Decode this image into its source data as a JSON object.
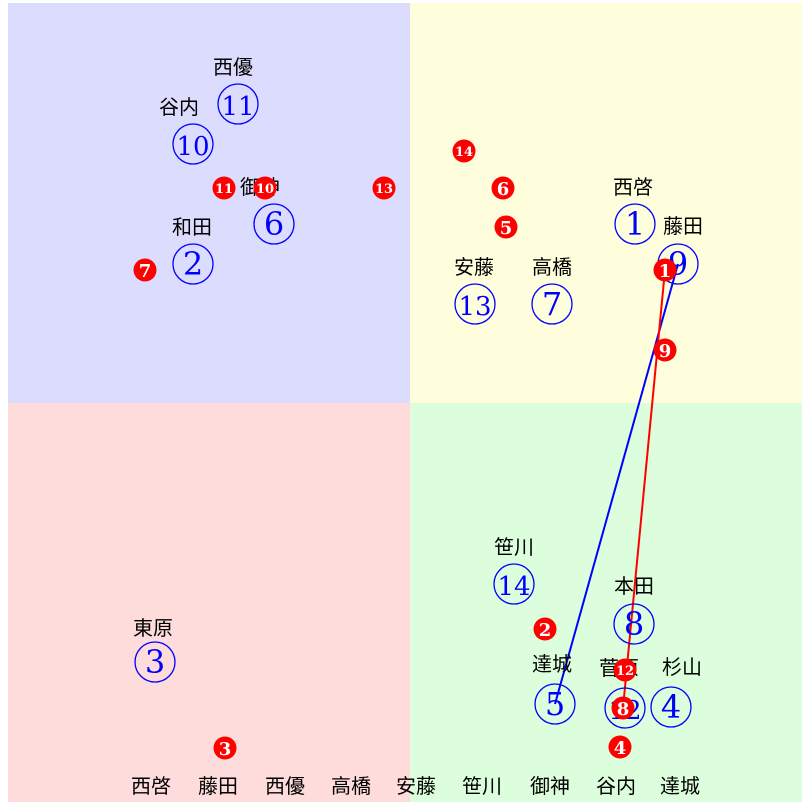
{
  "quadrant_colors": {
    "top_left": "#dcdcfe",
    "top_right": "#fefedc",
    "bottom_left": "#fedcdc",
    "bottom_right": "#dcfedc"
  },
  "colors": {
    "blue": "#0000ff",
    "red": "#ff0000",
    "label": "#000000"
  },
  "blue_markers": [
    {
      "number": "1",
      "name": "西啓"
    },
    {
      "number": "2",
      "name": "和田"
    },
    {
      "number": "3",
      "name": "東原"
    },
    {
      "number": "4",
      "name": "杉山"
    },
    {
      "number": "5",
      "name": "達城"
    },
    {
      "number": "6",
      "name": "御神"
    },
    {
      "number": "7",
      "name": "高橋"
    },
    {
      "number": "8",
      "name": "本田"
    },
    {
      "number": "9",
      "name": "藤田"
    },
    {
      "number": "10",
      "name": "谷内"
    },
    {
      "number": "11",
      "name": "西優"
    },
    {
      "number": "12",
      "name": "菅原"
    },
    {
      "number": "13",
      "name": "安藤"
    },
    {
      "number": "14",
      "name": "笹川"
    }
  ],
  "red_markers": [
    "1",
    "2",
    "3",
    "4",
    "5",
    "6",
    "7",
    "8",
    "9",
    "10",
    "11",
    "12",
    "13",
    "14"
  ],
  "blue_path": [
    "5",
    "9"
  ],
  "red_path": [
    "8",
    "1"
  ],
  "bottom_labels": [
    "西啓",
    "藤田",
    "西優",
    "高橋",
    "安藤",
    "笹川",
    "御神",
    "谷内",
    "達城"
  ]
}
